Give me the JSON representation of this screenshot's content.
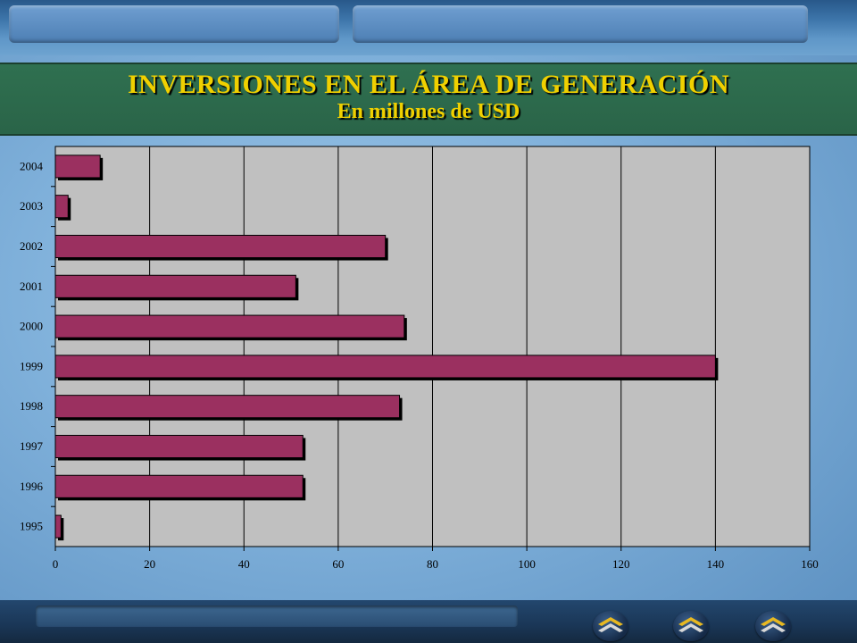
{
  "header": {
    "title": "INVERSIONES EN EL ÁREA DE GENERACIÓN",
    "subtitle": "En millones de USD"
  },
  "colors": {
    "title_text": "#f0d000",
    "title_band": "#2e6b4e",
    "bar_fill": "#9b3060",
    "plot_background": "#c0c0c0",
    "nav_arrow": "#e8b820"
  },
  "nav": {
    "buttons": [
      {
        "icon": "chevron-up-gold-icon"
      },
      {
        "icon": "chevron-up-gold-icon"
      },
      {
        "icon": "chevron-up-gold-icon"
      }
    ]
  },
  "chart_data": {
    "type": "bar",
    "orientation": "horizontal",
    "categories": [
      "2004",
      "2003",
      "2002",
      "2001",
      "2000",
      "1999",
      "1998",
      "1997",
      "1996",
      "1995"
    ],
    "values": [
      9.5,
      2.7,
      70,
      51,
      74,
      140,
      73,
      52.5,
      52.5,
      1.2
    ],
    "xlim": [
      0,
      160
    ],
    "xticks": [
      0,
      20,
      40,
      60,
      80,
      100,
      120,
      140,
      160
    ],
    "grid": "vertical",
    "legend": "none"
  }
}
